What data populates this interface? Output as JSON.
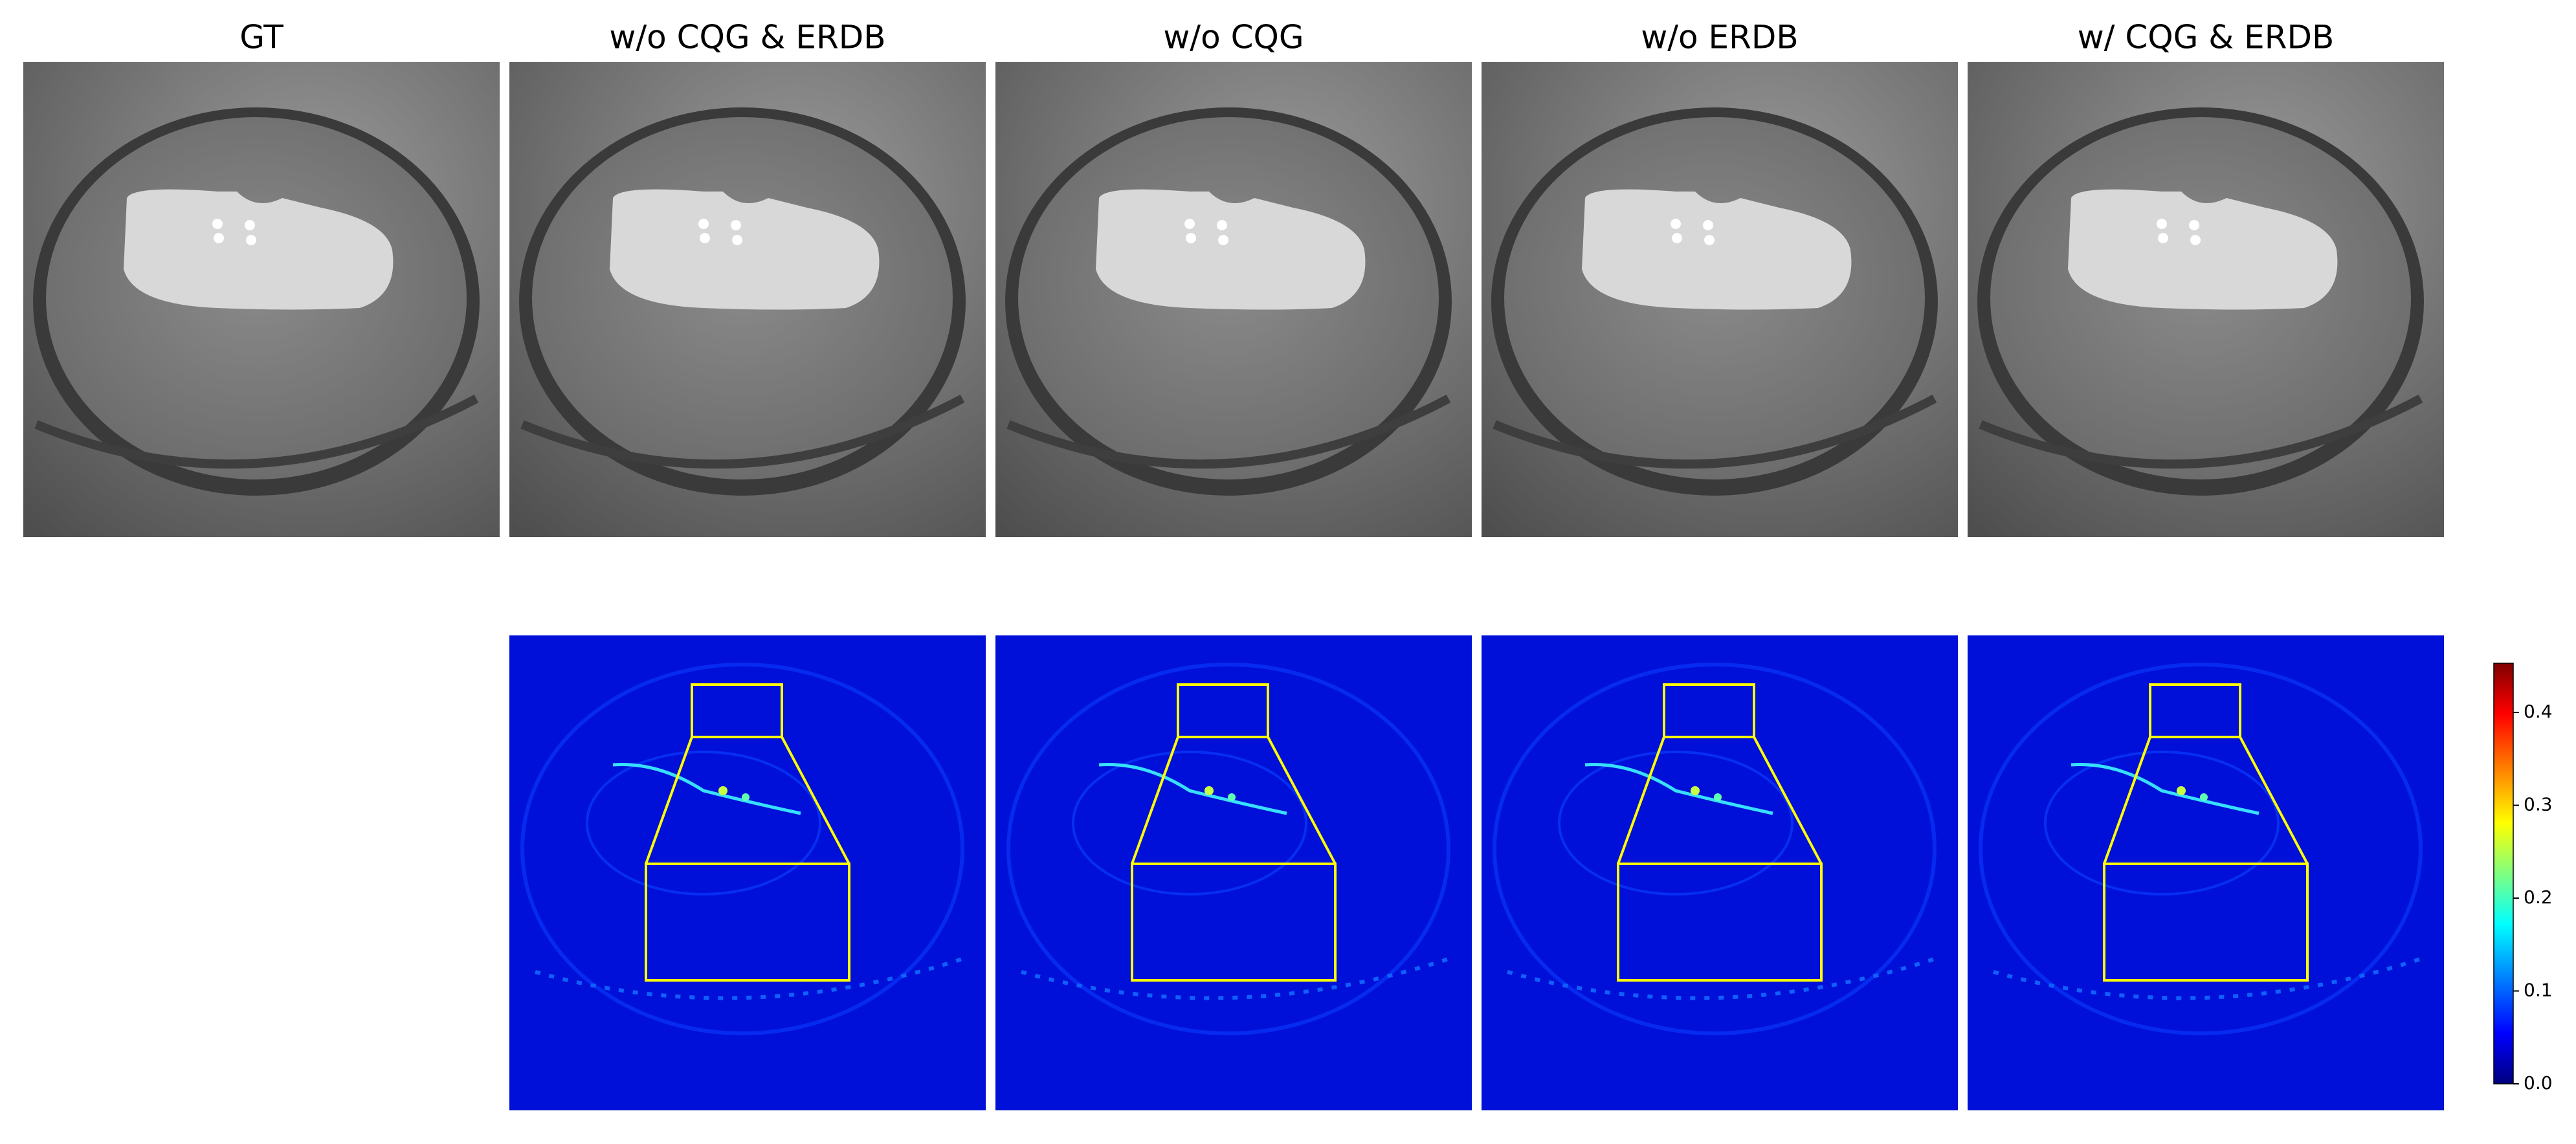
{
  "columns": [
    {
      "title": "GT"
    },
    {
      "title": "w/o CQG & ERDB"
    },
    {
      "title": "w/o CQG"
    },
    {
      "title": "w/o ERDB"
    },
    {
      "title": "w/ CQG & ERDB"
    }
  ],
  "colorbar": {
    "lim": [
      0,
      0.453
    ],
    "ticks": [
      {
        "value": 0,
        "label": "0.0"
      },
      {
        "value": 0.1,
        "label": "0.1"
      },
      {
        "value": 0.2,
        "label": "0.2"
      },
      {
        "value": 0.3,
        "label": "0.3"
      },
      {
        "value": 0.4,
        "label": "0.4"
      }
    ]
  }
}
